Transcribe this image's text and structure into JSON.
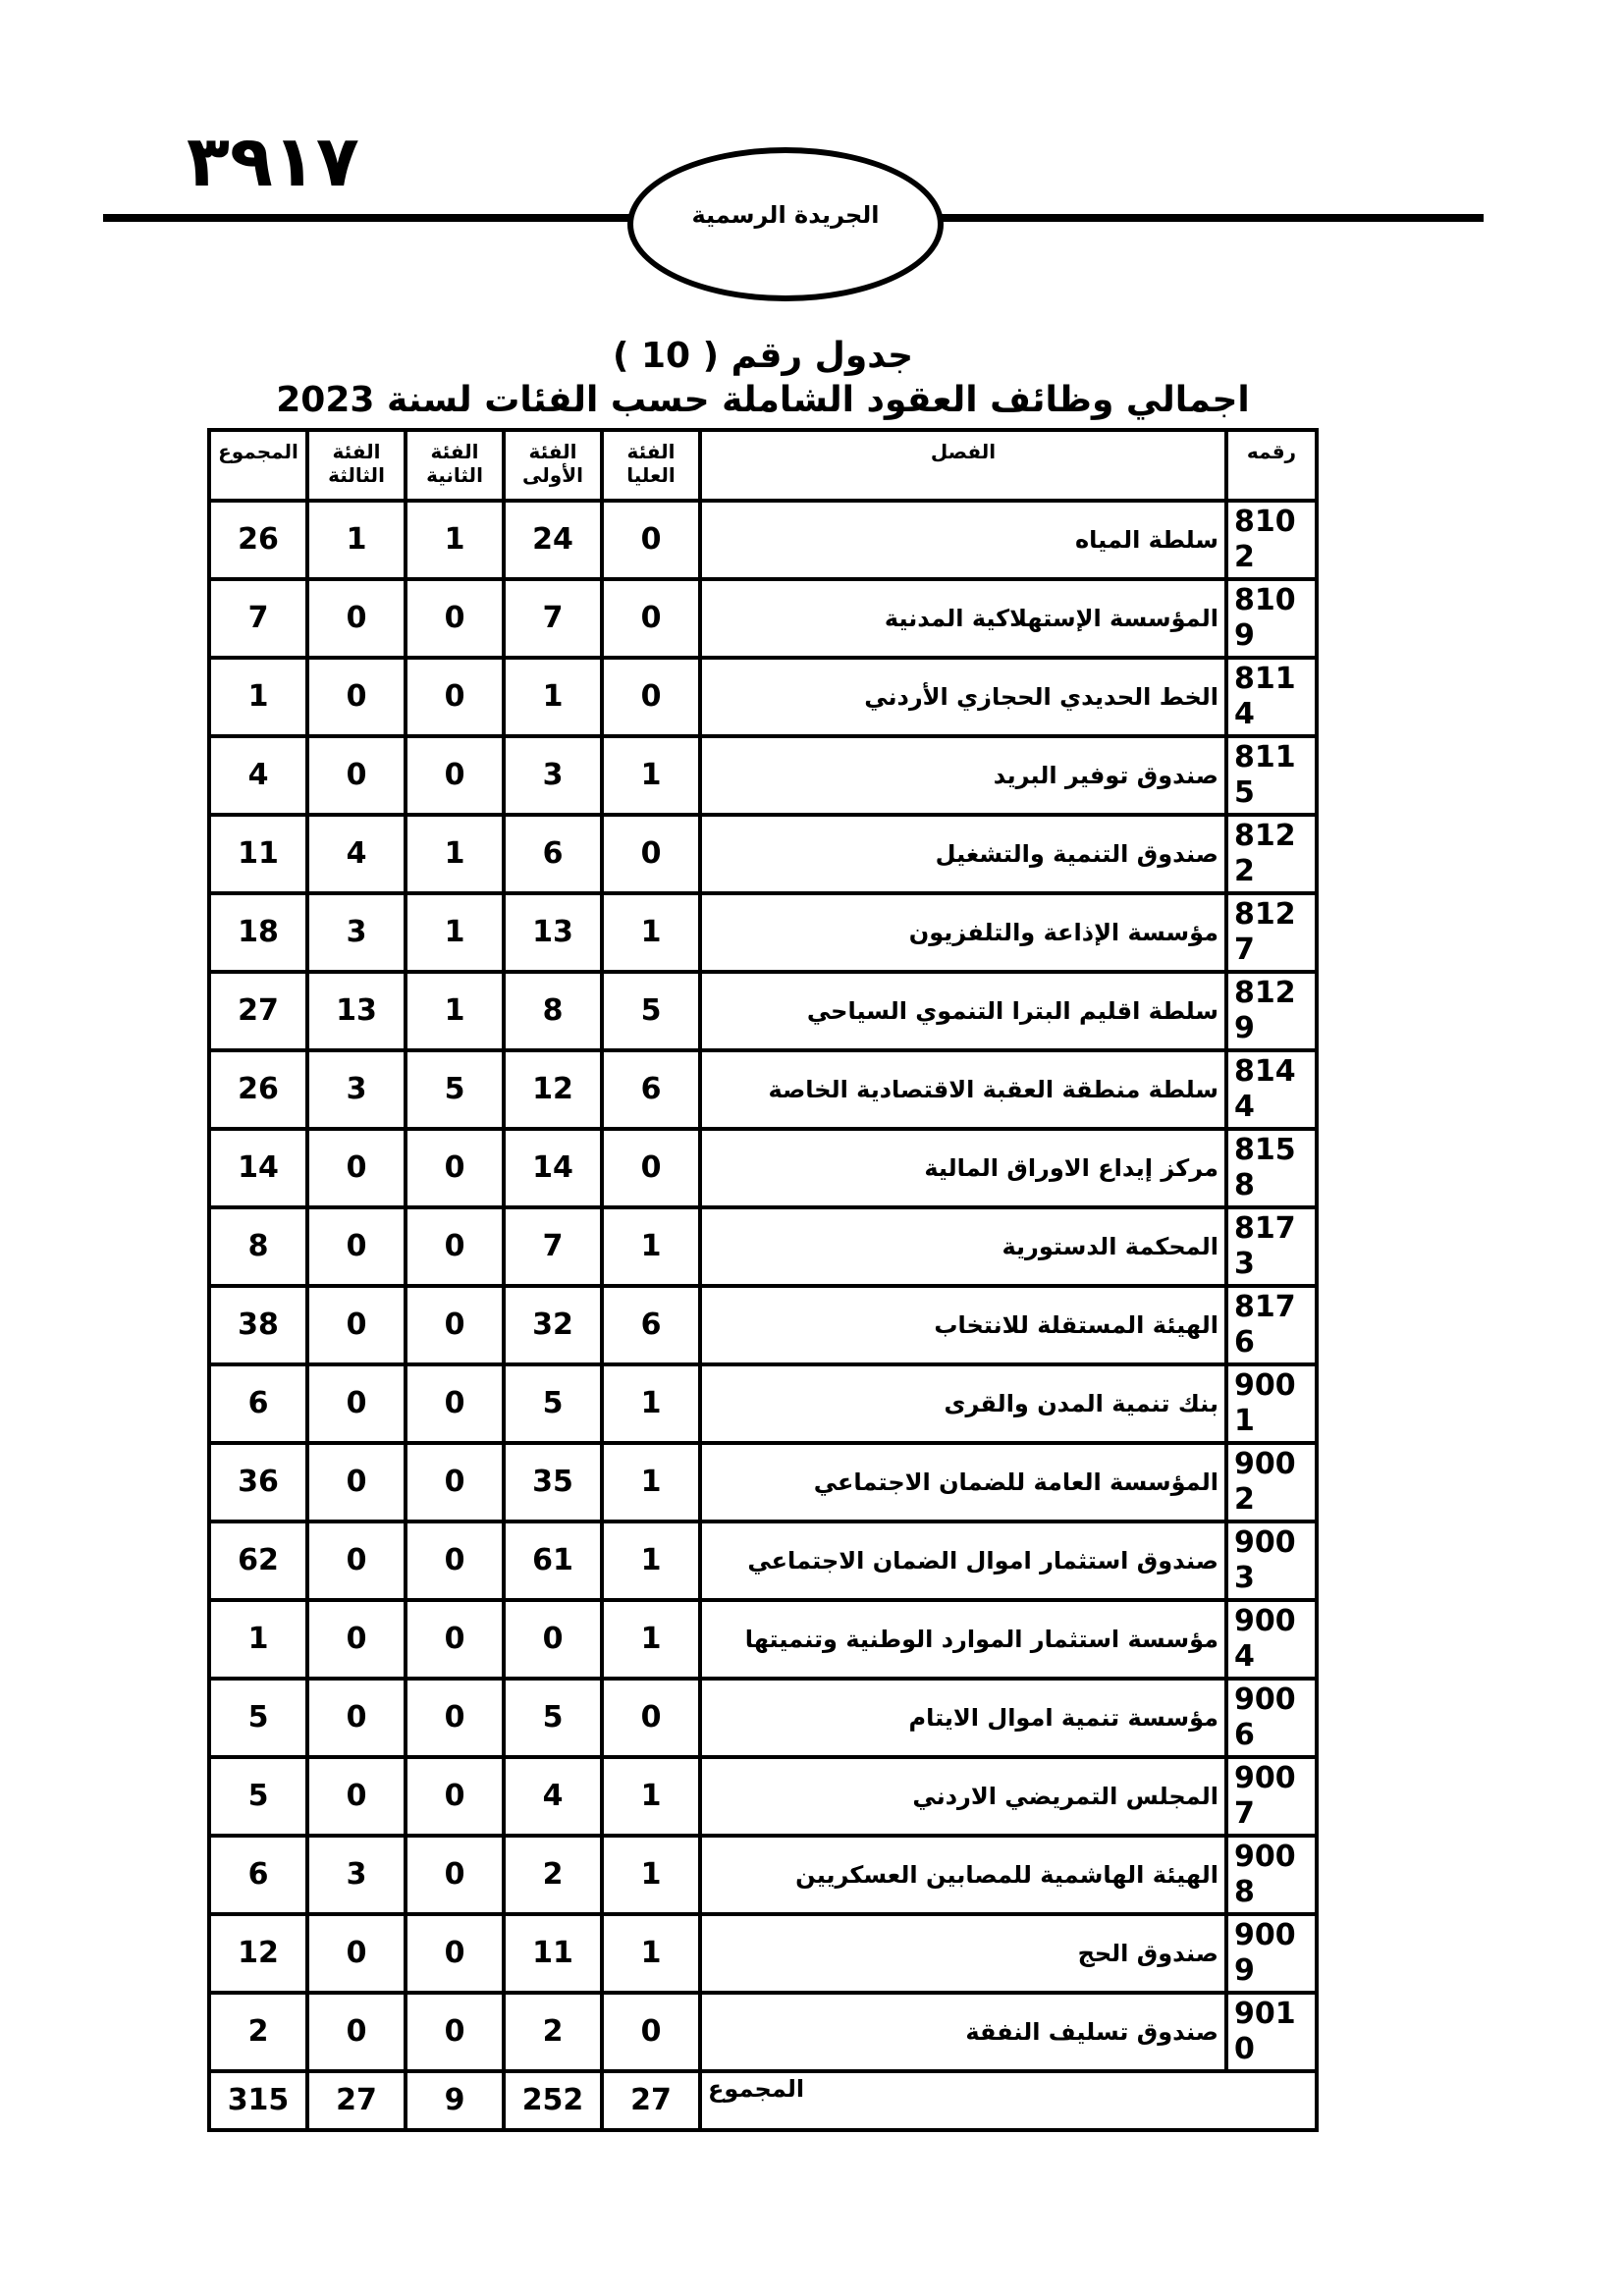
{
  "header": {
    "page_number": "٣٩١٧",
    "gazette_name": "الجريدة الرسمية"
  },
  "table_title": "جدول رقم ( 10 )",
  "table_subtitle": "اجمالي وظائف العقود الشاملة حسب الفئات لسنة 2023",
  "columns": [
    "رقمه",
    "الفصل",
    "الفئة العليا",
    "الفئة الأولى",
    "الفئة الثانية",
    "الفئة الثالثة",
    "المجموع"
  ],
  "rows": [
    {
      "code": "8102",
      "name": "سلطة المياه",
      "top": "0",
      "first": "24",
      "second": "1",
      "third": "1",
      "total": "26"
    },
    {
      "code": "8109",
      "name": "المؤسسة الإستهلاكية المدنية",
      "top": "0",
      "first": "7",
      "second": "0",
      "third": "0",
      "total": "7"
    },
    {
      "code": "8114",
      "name": "الخط الحديدي الحجازي الأردني",
      "top": "0",
      "first": "1",
      "second": "0",
      "third": "0",
      "total": "1"
    },
    {
      "code": "8115",
      "name": "صندوق توفير البريد",
      "top": "1",
      "first": "3",
      "second": "0",
      "third": "0",
      "total": "4"
    },
    {
      "code": "8122",
      "name": "صندوق التنمية والتشغيل",
      "top": "0",
      "first": "6",
      "second": "1",
      "third": "4",
      "total": "11"
    },
    {
      "code": "8127",
      "name": "مؤسسة الإذاعة والتلفزيون",
      "top": "1",
      "first": "13",
      "second": "1",
      "third": "3",
      "total": "18"
    },
    {
      "code": "8129",
      "name": "سلطة اقليم البترا التنموي السياحي",
      "top": "5",
      "first": "8",
      "second": "1",
      "third": "13",
      "total": "27"
    },
    {
      "code": "8144",
      "name": "سلطة منطقة العقبة الاقتصادية الخاصة",
      "top": "6",
      "first": "12",
      "second": "5",
      "third": "3",
      "total": "26"
    },
    {
      "code": "8158",
      "name": "مركز إيداع الاوراق المالية",
      "top": "0",
      "first": "14",
      "second": "0",
      "third": "0",
      "total": "14"
    },
    {
      "code": "8173",
      "name": "المحكمة الدستورية",
      "top": "1",
      "first": "7",
      "second": "0",
      "third": "0",
      "total": "8"
    },
    {
      "code": "8176",
      "name": "الهيئة المستقلة للانتخاب",
      "top": "6",
      "first": "32",
      "second": "0",
      "third": "0",
      "total": "38"
    },
    {
      "code": "9001",
      "name": "بنك تنمية المدن والقرى",
      "top": "1",
      "first": "5",
      "second": "0",
      "third": "0",
      "total": "6"
    },
    {
      "code": "9002",
      "name": "المؤسسة العامة للضمان الاجتماعي",
      "top": "1",
      "first": "35",
      "second": "0",
      "third": "0",
      "total": "36"
    },
    {
      "code": "9003",
      "name": "صندوق استثمار اموال الضمان الاجتماعي",
      "top": "1",
      "first": "61",
      "second": "0",
      "third": "0",
      "total": "62"
    },
    {
      "code": "9004",
      "name": "مؤسسة استثمار الموارد الوطنية وتنميتها",
      "top": "1",
      "first": "0",
      "second": "0",
      "third": "0",
      "total": "1"
    },
    {
      "code": "9006",
      "name": "مؤسسة تنمية اموال الايتام",
      "top": "0",
      "first": "5",
      "second": "0",
      "third": "0",
      "total": "5"
    },
    {
      "code": "9007",
      "name": "المجلس التمريضي الاردني",
      "top": "1",
      "first": "4",
      "second": "0",
      "third": "0",
      "total": "5"
    },
    {
      "code": "9008",
      "name": "الهيئة الهاشمية للمصابين العسكريين",
      "top": "1",
      "first": "2",
      "second": "0",
      "third": "3",
      "total": "6"
    },
    {
      "code": "9009",
      "name": "صندوق الحج",
      "top": "1",
      "first": "11",
      "second": "0",
      "third": "0",
      "total": "12"
    },
    {
      "code": "9010",
      "name": "صندوق تسليف النفقة",
      "top": "0",
      "first": "2",
      "second": "0",
      "third": "0",
      "total": "2"
    }
  ],
  "totals": {
    "label": "المجموع",
    "top": "27",
    "first": "252",
    "second": "9",
    "third": "27",
    "total": "315"
  }
}
